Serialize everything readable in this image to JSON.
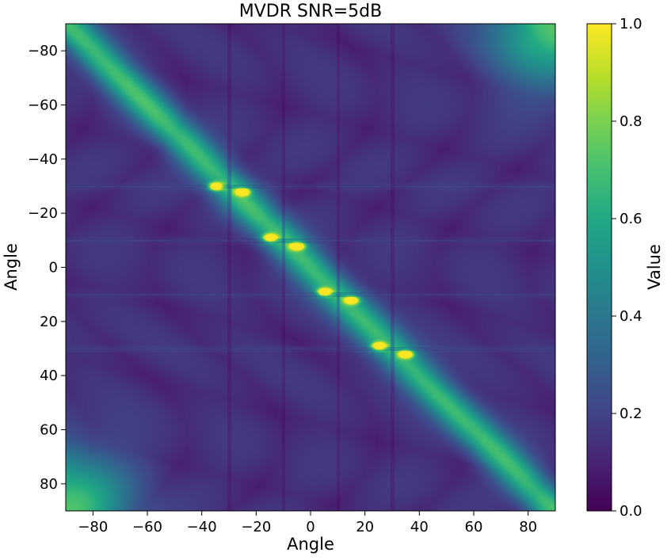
{
  "chart_data": {
    "type": "heatmap",
    "title": "MVDR SNR=5dB",
    "xlabel": "Angle",
    "ylabel": "Angle",
    "xlim": [
      -90,
      90
    ],
    "ylim": [
      90,
      -90
    ],
    "x_ticks": [
      "−80",
      "−60",
      "−40",
      "−20",
      "0",
      "20",
      "40",
      "60",
      "80"
    ],
    "x_tick_values": [
      -80,
      -60,
      -40,
      -20,
      0,
      20,
      40,
      60,
      80
    ],
    "y_ticks": [
      "−80",
      "−60",
      "−40",
      "−20",
      "0",
      "20",
      "40",
      "60",
      "80"
    ],
    "y_tick_values": [
      -80,
      -60,
      -40,
      -20,
      0,
      20,
      40,
      60,
      80
    ],
    "colorbar": {
      "label": "Value",
      "range": [
        0,
        1
      ],
      "ticks": [
        "0.0",
        "0.2",
        "0.4",
        "0.6",
        "0.8",
        "1.0"
      ],
      "tick_values": [
        0,
        0.2,
        0.4,
        0.6,
        0.8,
        1.0
      ],
      "colormap": "viridis"
    },
    "grid": false,
    "peaks": [
      {
        "x": -35,
        "y": -30,
        "value": 1.0
      },
      {
        "x": -25,
        "y": -28,
        "value": 0.95
      },
      {
        "x": -15,
        "y": -11,
        "value": 1.0
      },
      {
        "x": -5,
        "y": -8,
        "value": 1.0
      },
      {
        "x": 5,
        "y": 9,
        "value": 1.0
      },
      {
        "x": 15,
        "y": 12,
        "value": 0.95
      },
      {
        "x": 25,
        "y": 29,
        "value": 1.0
      },
      {
        "x": 35,
        "y": 32,
        "value": 1.0
      }
    ],
    "horizontal_stripes_y": [
      -30,
      -10,
      10,
      30
    ],
    "vertical_lines_x": [
      -30,
      -10,
      10,
      30
    ],
    "diagonal_ridge_value": 0.55,
    "corner_value": 0.6,
    "background_value": 0.08
  },
  "colors": {
    "viridis_low": "#440154",
    "viridis_mid": "#21918c",
    "viridis_high": "#fde725"
  }
}
